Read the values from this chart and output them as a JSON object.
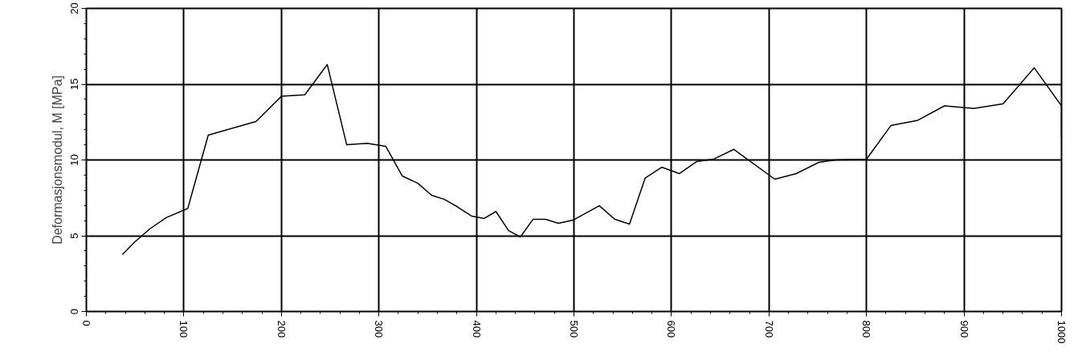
{
  "chart_data": {
    "type": "line",
    "ylabel": "Deformasjonsmodul, M [MPa]",
    "x": [
      37,
      49,
      65,
      82,
      104,
      125,
      174,
      200,
      224,
      247,
      267,
      288,
      307,
      324,
      340,
      354,
      367,
      380,
      395,
      408,
      420,
      433,
      445,
      458,
      471,
      484,
      499,
      526,
      542,
      557,
      573,
      590,
      608,
      626,
      643,
      664,
      706,
      728,
      751,
      768,
      800,
      825,
      852,
      880,
      910,
      940,
      972,
      1000,
      1000
    ],
    "series": [
      {
        "color": "#000000",
        "values": [
          3.76,
          4.55,
          5.45,
          6.2,
          6.8,
          11.64,
          12.54,
          14.2,
          14.3,
          16.3,
          11.0,
          11.1,
          10.9,
          8.94,
          8.46,
          7.67,
          7.4,
          6.93,
          6.3,
          6.14,
          6.6,
          5.34,
          4.92,
          6.08,
          6.08,
          5.82,
          6.03,
          6.98,
          6.08,
          5.77,
          8.8,
          9.52,
          9.1,
          9.9,
          10.05,
          10.7,
          8.73,
          9.1,
          9.84,
          10.0,
          10.05,
          12.27,
          12.6,
          13.57,
          13.4,
          13.7,
          16.08,
          13.57,
          11.5
        ]
      }
    ],
    "xlim": [
      0,
      1000
    ],
    "xticks": [
      0,
      100,
      200,
      300,
      400,
      500,
      600,
      700,
      800,
      900,
      1000
    ],
    "ylim": [
      0,
      20
    ],
    "yticks": [
      0,
      5,
      10,
      15,
      20
    ],
    "grid": true,
    "marker": "none",
    "line_style": "solid"
  }
}
